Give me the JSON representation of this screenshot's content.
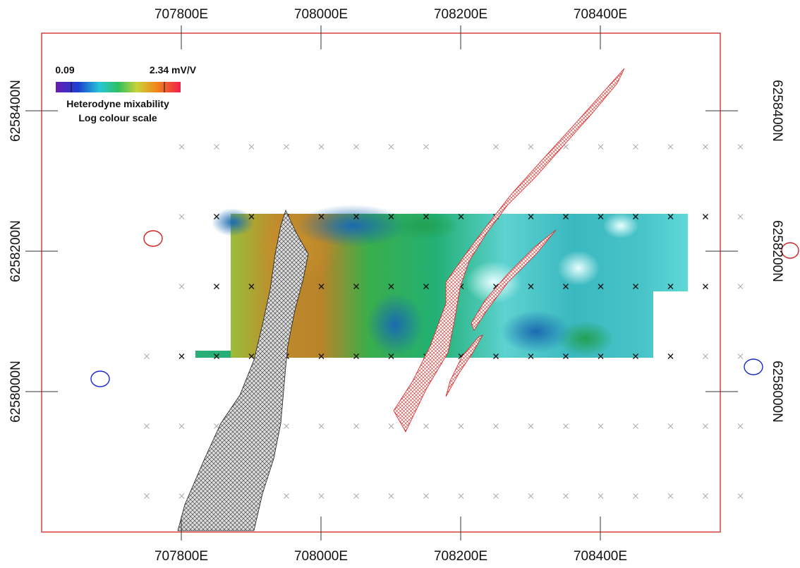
{
  "x_axis": {
    "labels": [
      "707800E",
      "708000E",
      "708200E",
      "708400E"
    ]
  },
  "y_axis": {
    "labels": [
      "6258400N",
      "6258200N",
      "6258000N"
    ]
  },
  "colorbar": {
    "min_label": "0.09",
    "max_label": "2.34 mV/V",
    "title": "Heterodyne mixability",
    "subtitle": "Log colour scale"
  }
}
